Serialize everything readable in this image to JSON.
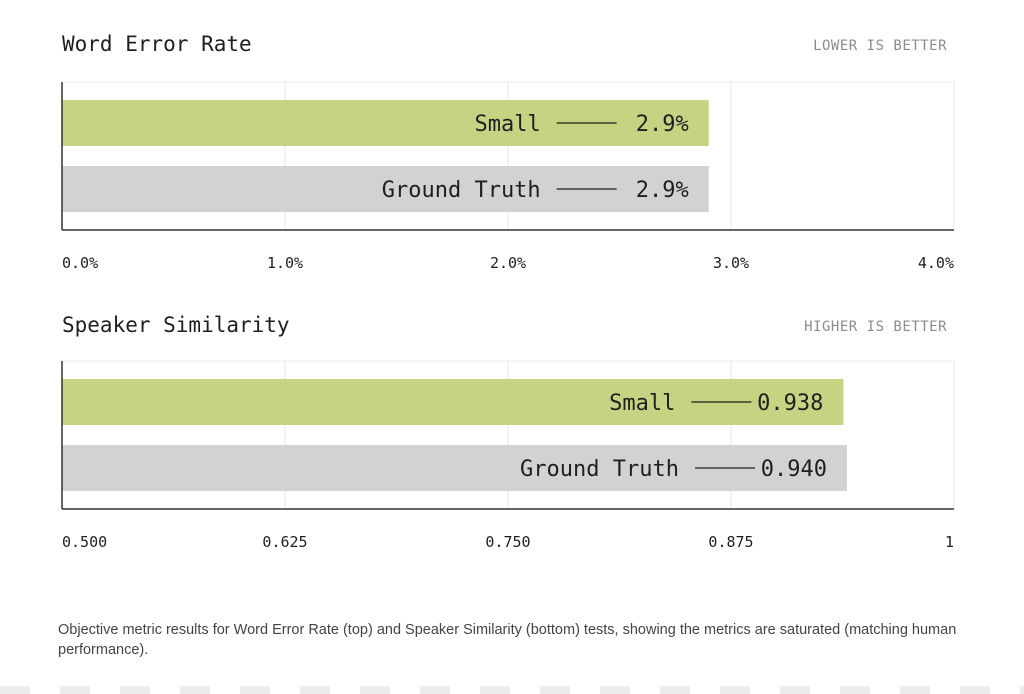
{
  "chart_data": [
    {
      "type": "bar",
      "orientation": "horizontal",
      "title": "Word Error Rate",
      "note": "LOWER IS BETTER",
      "categories": [
        "Small",
        "Ground Truth"
      ],
      "values": [
        2.9,
        2.9
      ],
      "value_labels": [
        "2.9%",
        "2.9%"
      ],
      "bar_colors": [
        "#c5d483",
        "#d2d2d2"
      ],
      "xlim": [
        0,
        4
      ],
      "ticks": [
        0,
        1,
        2,
        3,
        4
      ],
      "tick_labels": [
        "0.0%",
        "1.0%",
        "2.0%",
        "3.0%",
        "4.0%"
      ],
      "grid": true
    },
    {
      "type": "bar",
      "orientation": "horizontal",
      "title": "Speaker Similarity",
      "note": "HIGHER IS BETTER",
      "categories": [
        "Small",
        "Ground Truth"
      ],
      "values": [
        0.938,
        0.94
      ],
      "value_labels": [
        "0.938",
        "0.940"
      ],
      "bar_colors": [
        "#c5d483",
        "#d2d2d2"
      ],
      "xlim": [
        0.5,
        1
      ],
      "ticks": [
        0.5,
        0.625,
        0.75,
        0.875,
        1
      ],
      "tick_labels": [
        "0.500",
        "0.625",
        "0.750",
        "0.875",
        "1"
      ],
      "grid": true
    }
  ],
  "caption": "Objective metric results for Word Error Rate (top) and Speaker Similarity (bottom) tests, showing the metrics are saturated (matching human performance)."
}
